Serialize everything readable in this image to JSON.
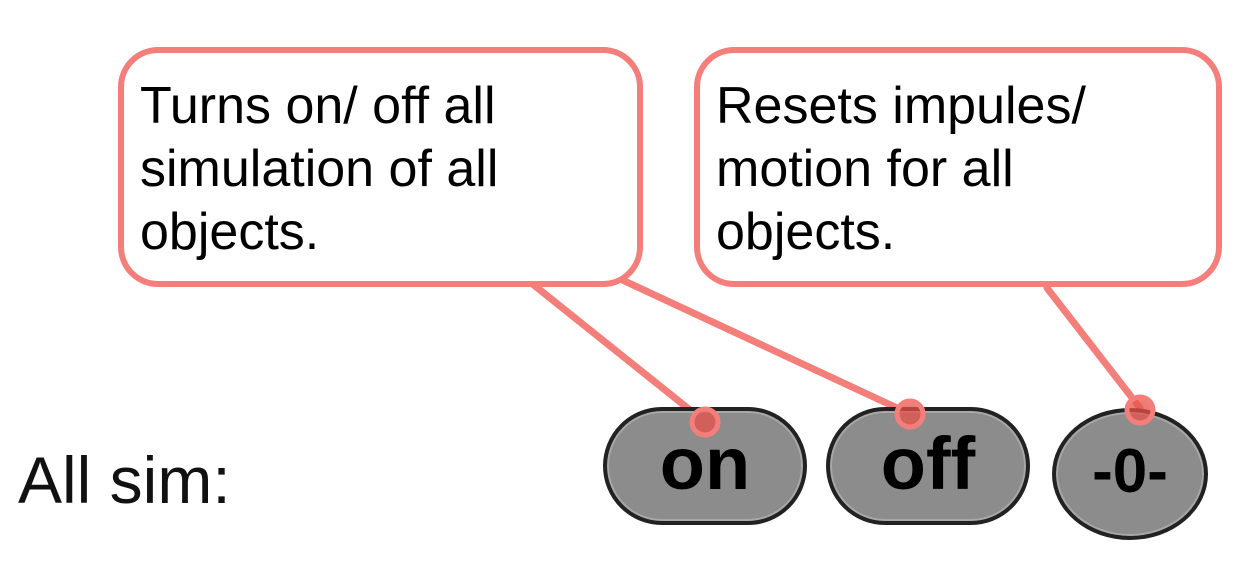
{
  "callouts": {
    "left": {
      "lines": [
        "Turns on/ off all",
        "simulation of all",
        "objects."
      ]
    },
    "right": {
      "lines": [
        "Resets impules/",
        "motion for all",
        "objects."
      ]
    }
  },
  "row": {
    "label": "All sim:"
  },
  "buttons": {
    "on_label": "on",
    "off_label": "off",
    "reset_label": "-0-"
  },
  "colors": {
    "callout_border": "#f47f7a",
    "leader_line": "#f47f7a",
    "anchor_dot": "#e8514a",
    "button_fill": "#8c8c8c",
    "button_border": "#222222"
  }
}
